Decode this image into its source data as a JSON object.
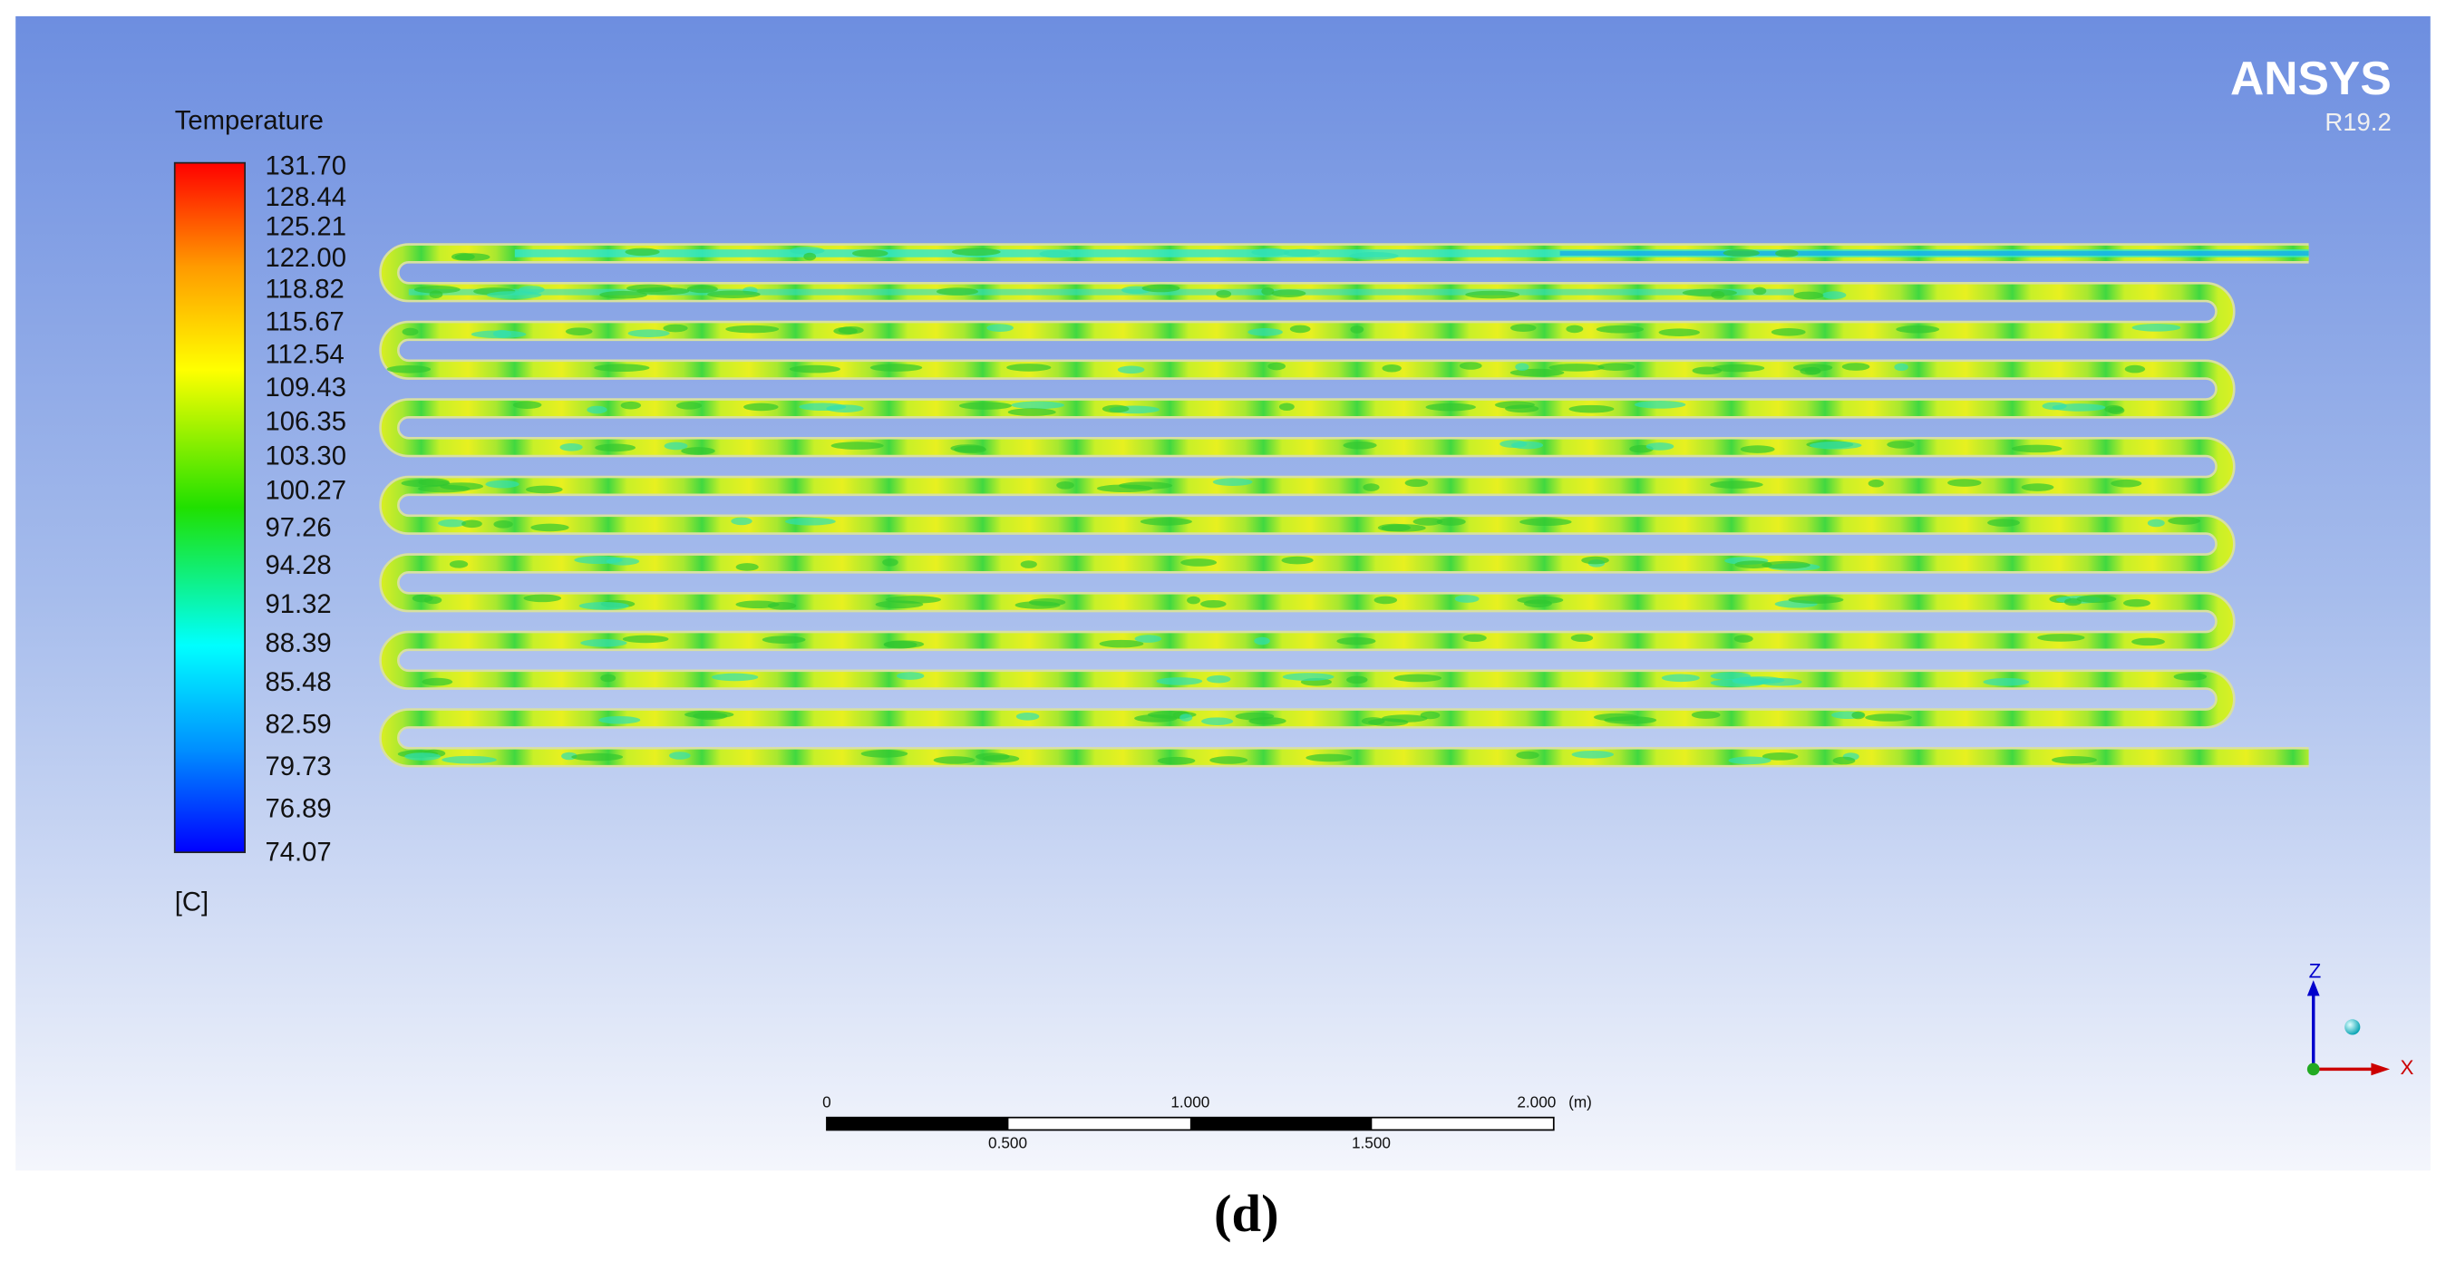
{
  "legend": {
    "title": "Temperature",
    "labels": [
      "131.70",
      "128.44",
      "125.21",
      "122.00",
      "118.82",
      "115.67",
      "112.54",
      "109.43",
      "106.35",
      "103.30",
      "100.27",
      "97.26",
      "94.28",
      "91.32",
      "88.39",
      "85.48",
      "82.59",
      "79.73",
      "76.89",
      "74.07"
    ],
    "unit": "[C]"
  },
  "logo": {
    "name": "ANSYS",
    "version": "R19.2"
  },
  "scale_bar": {
    "top_labels": [
      "0",
      "1.000",
      "2.000"
    ],
    "unit": "(m)",
    "bottom_labels": [
      "0.500",
      "1.500"
    ]
  },
  "triad": {
    "up": "Z",
    "right": "X"
  },
  "caption": "(d)"
}
